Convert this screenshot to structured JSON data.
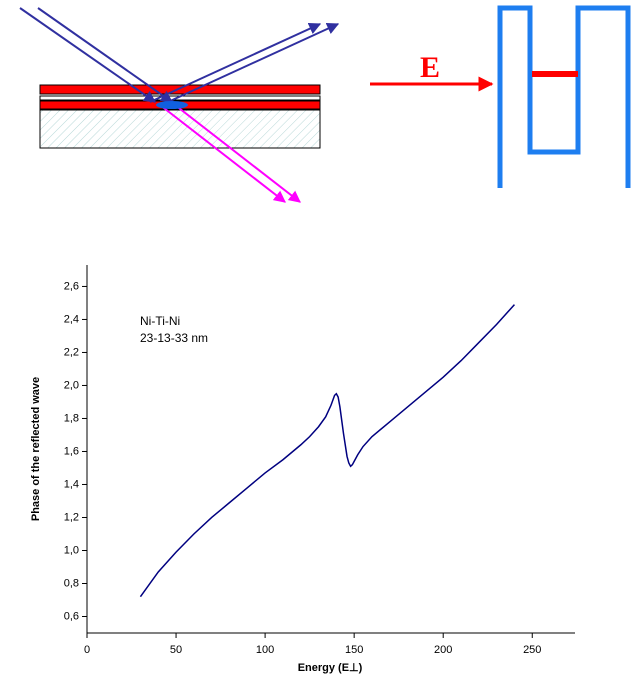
{
  "diagram": {
    "field_label": "E"
  },
  "chart_data": {
    "type": "line",
    "xlabel": "Energy (E⊥)",
    "ylabel": "Phase of the reflected wave",
    "annotations": [
      "Ni-Ti-Ni",
      "23-13-33 nm"
    ],
    "xlim": [
      0,
      274
    ],
    "xticks": [
      0,
      50,
      100,
      150,
      200,
      250
    ],
    "ylim": [
      0.5,
      2.73
    ],
    "yticks": [
      {
        "value": 0.6,
        "label": "0,6"
      },
      {
        "value": 0.8,
        "label": "0,8"
      },
      {
        "value": 1.0,
        "label": "1,0"
      },
      {
        "value": 1.2,
        "label": "1,2"
      },
      {
        "value": 1.4,
        "label": "1,4"
      },
      {
        "value": 1.6,
        "label": "1,6"
      },
      {
        "value": 1.8,
        "label": "1,8"
      },
      {
        "value": 2.0,
        "label": "2,0"
      },
      {
        "value": 2.2,
        "label": "2,2"
      },
      {
        "value": 2.4,
        "label": "2,4"
      },
      {
        "value": 2.6,
        "label": "2,6"
      }
    ],
    "series": [
      {
        "color": "#000080",
        "x": [
          30,
          40,
          50,
          60,
          70,
          80,
          90,
          100,
          110,
          120,
          125,
          130,
          134,
          137,
          139,
          140,
          141,
          142,
          143,
          144,
          145,
          146,
          147,
          148,
          149,
          150,
          152,
          155,
          160,
          170,
          180,
          190,
          200,
          210,
          220,
          230,
          240
        ],
        "values": [
          0.72,
          0.87,
          0.99,
          1.1,
          1.2,
          1.29,
          1.38,
          1.47,
          1.55,
          1.64,
          1.69,
          1.75,
          1.81,
          1.88,
          1.94,
          1.95,
          1.93,
          1.87,
          1.79,
          1.71,
          1.64,
          1.57,
          1.53,
          1.51,
          1.52,
          1.54,
          1.58,
          1.63,
          1.69,
          1.78,
          1.87,
          1.96,
          2.05,
          2.15,
          2.26,
          2.37,
          2.49
        ]
      }
    ]
  }
}
